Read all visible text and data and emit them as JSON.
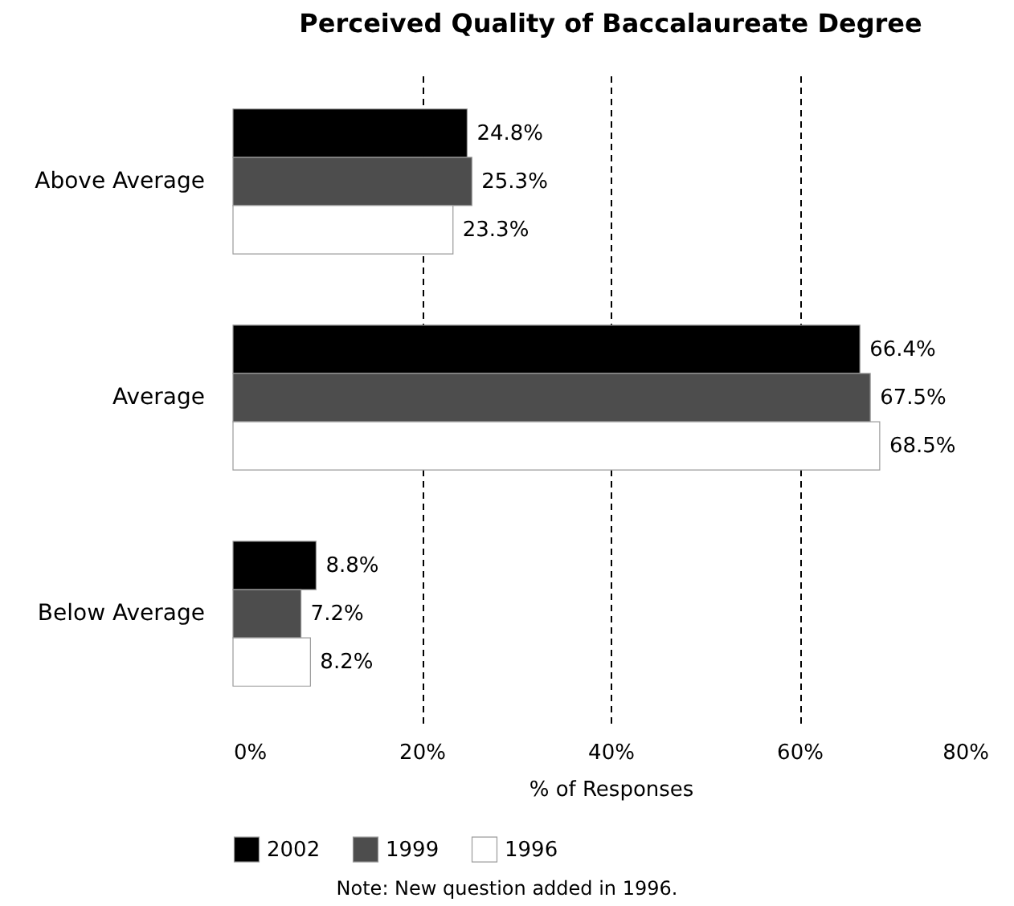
{
  "chart_data": {
    "type": "bar",
    "orientation": "horizontal",
    "title": "Perceived Quality of Baccalaureate Degree",
    "xlabel": "% of Responses",
    "categories": [
      "Above Average",
      "Average",
      "Below Average"
    ],
    "series": [
      {
        "name": "2002",
        "color": "#000000",
        "values": [
          24.8,
          66.4,
          8.8
        ],
        "value_labels": [
          "24.8%",
          "66.4%",
          "8.8%"
        ]
      },
      {
        "name": "1999",
        "color": "#4d4d4d",
        "values": [
          25.3,
          67.5,
          7.2
        ],
        "value_labels": [
          "25.3%",
          "67.5%",
          "7.2%"
        ]
      },
      {
        "name": "1996",
        "color": "#ffffff",
        "values": [
          23.3,
          68.5,
          8.2
        ],
        "value_labels": [
          "23.3%",
          "68.5%",
          "8.2%"
        ]
      }
    ],
    "xlim": [
      0,
      80
    ],
    "xticks": [
      {
        "value": 0,
        "label": "0%"
      },
      {
        "value": 20,
        "label": "20%"
      },
      {
        "value": 40,
        "label": "40%"
      },
      {
        "value": 60,
        "label": "60%"
      },
      {
        "value": 80,
        "label": "80%"
      }
    ],
    "grid": "x",
    "line_style": "dashed",
    "legend": "bottom",
    "annotations": [
      "Note: New question added in 1996."
    ]
  }
}
